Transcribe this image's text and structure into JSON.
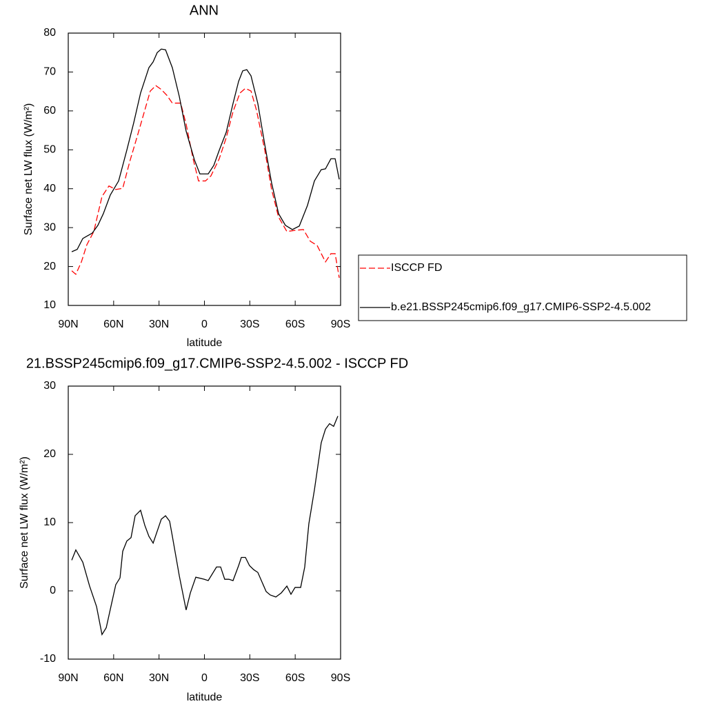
{
  "chart_data": [
    {
      "type": "line",
      "title": "ANN",
      "xlabel": "latitude",
      "ylabel": "Surface net LW flux (W/m²)",
      "xlim": [
        90,
        -90
      ],
      "xticks": [
        {
          "value": 90,
          "label": "90N"
        },
        {
          "value": 60,
          "label": "60N"
        },
        {
          "value": 30,
          "label": "30N"
        },
        0,
        {
          "value": -30,
          "label": "30S"
        },
        {
          "value": -60,
          "label": "60S"
        },
        {
          "value": -90,
          "label": "90S"
        }
      ],
      "ylim": [
        10,
        80
      ],
      "yticks": [
        10,
        20,
        30,
        40,
        50,
        60,
        70,
        80
      ],
      "legend": "right",
      "series": [
        {
          "name": "ISCCP FD",
          "color": "#ff0000",
          "dashed": true,
          "x": [
            87.7,
            85.0,
            81.3,
            77.7,
            73.1,
            67.7,
            63.1,
            58.6,
            54.0,
            49.4,
            44.0,
            39.4,
            35.8,
            32.1,
            28.5,
            24.8,
            21.2,
            15.7,
            12.1,
            7.5,
            3.9,
            -0.7,
            -4.3,
            -9.8,
            -14.4,
            -18.9,
            -23.5,
            -27.1,
            -30.8,
            -34.4,
            -39.9,
            -44.4,
            -49.0,
            -54.5,
            -59.9,
            -65.4,
            -70.0,
            -74.5,
            -80.0,
            -83.6,
            -86.4,
            -89.1
          ],
          "values": [
            18.9,
            18,
            21.2,
            25.6,
            29,
            38,
            40.7,
            39.8,
            40.1,
            46.9,
            54,
            60.2,
            65.1,
            66.5,
            65.5,
            64,
            62,
            62,
            56.6,
            47.7,
            42,
            42,
            43.3,
            47.7,
            53.1,
            59.8,
            64.6,
            65.8,
            65.1,
            60.2,
            49.9,
            39.8,
            32.7,
            29,
            29.3,
            29.5,
            26.5,
            25.4,
            21.2,
            23.3,
            23.3,
            17.1
          ]
        },
        {
          "name": "b.e21.BSSP245cmip6.f09_g17.CMIP6-SSP2-4.5.002",
          "color": "#000000",
          "dashed": false,
          "x": [
            87.7,
            84.1,
            80.4,
            74.1,
            70.4,
            66.8,
            62.2,
            56.7,
            51.3,
            46.7,
            42.2,
            36.7,
            33.9,
            31.2,
            28.5,
            25.7,
            21.2,
            16.6,
            12.1,
            6.6,
            3.0,
            -2.5,
            -6.2,
            -9.8,
            -14.4,
            -18.9,
            -22.6,
            -25.3,
            -28.0,
            -30.8,
            -35.3,
            -39.9,
            -44.4,
            -49.0,
            -53.5,
            -58.1,
            -62.7,
            -68.1,
            -72.7,
            -77.2,
            -80.0,
            -83.6,
            -86.4,
            -89.1
          ],
          "values": [
            23.8,
            24.4,
            27.2,
            28.6,
            30.6,
            33.6,
            38.4,
            42,
            49.9,
            57,
            64.6,
            71.1,
            72.6,
            75,
            75.9,
            75.7,
            71.1,
            63.7,
            54.8,
            47.4,
            43.8,
            43.8,
            46,
            49.9,
            54.5,
            61.9,
            67.6,
            70.3,
            70.6,
            69,
            61.9,
            51.3,
            41.5,
            33.6,
            30.6,
            29.5,
            30.4,
            35.7,
            42,
            44.9,
            45.1,
            47.7,
            47.7,
            42.4
          ]
        }
      ]
    },
    {
      "type": "line",
      "title": "21.BSSP245cmip6.f09_g17.CMIP6-SSP2-4.5.002 - ISCCP FD",
      "xlabel": "latitude",
      "ylabel": "Surface net LW flux (W/m²)",
      "xlim": [
        90,
        -90
      ],
      "xticks": [
        {
          "value": 90,
          "label": "90N"
        },
        {
          "value": 60,
          "label": "60N"
        },
        {
          "value": 30,
          "label": "30N"
        },
        0,
        {
          "value": -30,
          "label": "30S"
        },
        {
          "value": -60,
          "label": "60S"
        },
        {
          "value": -90,
          "label": "90S"
        }
      ],
      "ylim": [
        -10,
        30
      ],
      "yticks": [
        -10,
        0,
        10,
        20,
        30
      ],
      "series": [
        {
          "color": "#000000",
          "dashed": false,
          "x": [
            87.7,
            85.0,
            80.4,
            75.9,
            71.3,
            67.7,
            64.9,
            61.3,
            58.6,
            55.8,
            54.0,
            51.3,
            48.5,
            45.8,
            42.2,
            39.4,
            36.7,
            33.9,
            28.5,
            25.7,
            23.0,
            21.2,
            16.6,
            14.8,
            12.1,
            9.3,
            5.7,
            0.2,
            -2.5,
            -8.0,
            -10.7,
            -13.4,
            -16.2,
            -18.9,
            -22.6,
            -24.4,
            -27.1,
            -29.8,
            -32.6,
            -35.3,
            -40.8,
            -43.5,
            -47.2,
            -50.8,
            -54.5,
            -57.2,
            -59.9,
            -63.6,
            -66.3,
            -69.0,
            -72.7,
            -77.2,
            -80.0,
            -82.7,
            -85.4,
            -88.2
          ],
          "values": [
            4.5,
            6,
            4.2,
            0.7,
            -2.3,
            -6.4,
            -5.4,
            -1.8,
            0.9,
            1.9,
            5.8,
            7.3,
            7.8,
            11,
            11.8,
            9.6,
            8,
            7,
            10.5,
            11,
            10.2,
            8,
            2.2,
            0.2,
            -2.8,
            -0.3,
            2,
            1.7,
            1.5,
            3.5,
            3.5,
            1.7,
            1.7,
            1.5,
            3.7,
            4.9,
            4.9,
            3.7,
            3.1,
            2.7,
            -0.1,
            -0.6,
            -0.9,
            -0.3,
            0.7,
            -0.5,
            0.5,
            0.5,
            3.5,
            9.8,
            14.8,
            21.7,
            23.7,
            24.5,
            24.1,
            25.6
          ]
        }
      ]
    }
  ]
}
